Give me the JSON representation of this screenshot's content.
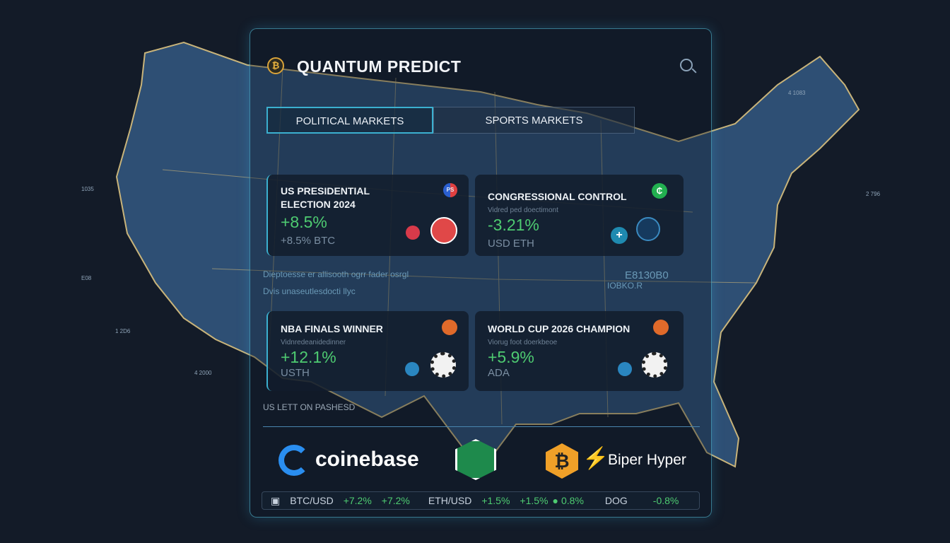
{
  "app": {
    "title": "QUANTUM PREDICT",
    "logo_glyph": "₿"
  },
  "tabs": [
    {
      "label": "POLITICAL MARKETS",
      "active": true
    },
    {
      "label": "SPORTS MARKETS",
      "active": false
    }
  ],
  "cards": [
    {
      "title": "US PRESIDENTIAL ELECTION 2024",
      "subtitle": "",
      "change": "+8.5%",
      "currency": "+8.5% BTC",
      "badge": "PS",
      "icon": "election-icon"
    },
    {
      "title": "CONGRESSIONAL CONTROL",
      "subtitle": "Vidred ped doectimont",
      "change": "-3.21%",
      "currency": "USD ETH",
      "badge": "₵",
      "icon": "capitol-icon"
    },
    {
      "title": "NBA FINALS WINNER",
      "subtitle": "Vidnredeanidedinner",
      "change": "+12.1%",
      "currency": "USTH",
      "badge": "",
      "icon": "soccer-ball-icon"
    },
    {
      "title": "WORLD CUP 2026 CHAMPION",
      "subtitle": "Viorug foot doerkbeoe",
      "change": "+5.9%",
      "currency": "ADA",
      "badge": "",
      "icon": "soccer-ball-icon"
    }
  ],
  "info_lines": [
    "Dieptoesse er allisooth ogrr fader osrgl",
    "Dvis unaseutlesdocti llyc"
  ],
  "side_code": [
    "E8130B0",
    "IOBKO.R"
  ],
  "section_label": "US LETT ON PASHESD",
  "brands": [
    "coinebase",
    "Biper Hyper"
  ],
  "ticker": [
    {
      "pair": "BTC/USD",
      "a": "+7.2%",
      "b": "+7.2%"
    },
    {
      "pair": "ETH/USD",
      "a": "+1.5%",
      "b": "+1.5%"
    },
    {
      "pair": "",
      "a": "0.8%",
      "b": ""
    },
    {
      "pair": "DOG",
      "a": "-0.8%",
      "b": ""
    }
  ],
  "map_labels": [
    "4 1083",
    "1035",
    "E08",
    "1 2D6",
    "4 2000",
    "2 796"
  ],
  "colors": {
    "accent": "#3bb0d0",
    "positive": "#4ecb71",
    "map": "#2f5177",
    "border": "#c9b47a"
  }
}
